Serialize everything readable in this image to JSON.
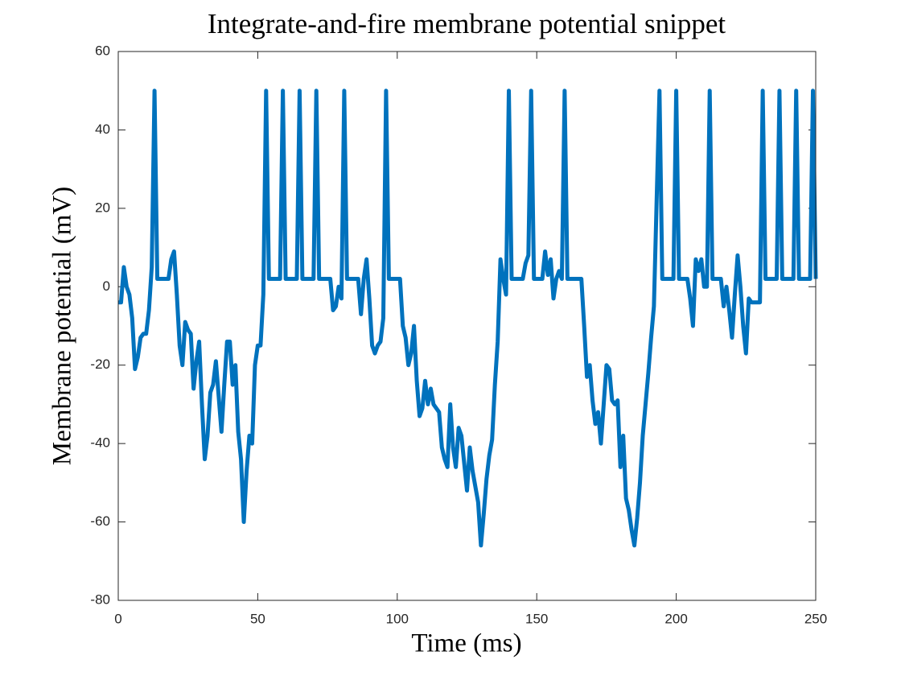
{
  "chart_data": {
    "type": "line",
    "title": "Integrate-and-fire membrane potential snippet",
    "x_label": "Time (ms)",
    "y_label": "Membrane potential (mV)",
    "xlim": [
      0,
      250
    ],
    "xticks": [
      0,
      50,
      100,
      150,
      200,
      250
    ],
    "ylim": [
      -80,
      60
    ],
    "yticks": [
      -80,
      -60,
      -40,
      -20,
      0,
      20,
      40,
      60
    ],
    "grid": false,
    "series": [
      {
        "color": "#0072bd",
        "x": [
          0,
          1,
          2,
          3,
          4,
          5,
          6,
          7,
          8,
          9,
          10,
          11,
          12,
          13,
          14,
          18,
          19,
          20,
          21,
          22,
          23,
          24,
          25,
          26,
          27,
          28,
          29,
          30,
          31,
          32,
          33,
          34,
          35,
          36,
          37,
          38,
          39,
          40,
          41,
          42,
          43,
          44,
          45,
          46,
          47,
          48,
          49,
          50,
          51,
          52,
          53,
          54,
          58,
          59,
          60,
          64,
          65,
          66,
          70,
          71,
          72,
          76,
          77,
          78,
          79,
          80,
          81,
          82,
          86,
          87,
          88,
          89,
          90,
          91,
          92,
          93,
          94,
          95,
          96,
          97,
          101,
          102,
          103,
          104,
          105,
          106,
          107,
          108,
          109,
          110,
          111,
          112,
          113,
          114,
          115,
          116,
          117,
          118,
          119,
          120,
          121,
          122,
          123,
          124,
          125,
          126,
          127,
          128,
          129,
          130,
          131,
          132,
          133,
          134,
          135,
          136,
          137,
          138,
          139,
          140,
          141,
          145,
          146,
          147,
          148,
          149,
          152,
          153,
          154,
          155,
          156,
          157,
          158,
          159,
          160,
          161,
          166,
          167,
          168,
          169,
          170,
          171,
          172,
          173,
          174,
          175,
          176,
          177,
          178,
          179,
          180,
          181,
          182,
          183,
          184,
          185,
          186,
          187,
          188,
          189,
          190,
          191,
          192,
          194,
          195,
          199,
          200,
          201,
          204,
          205,
          206,
          207,
          208,
          209,
          210,
          211,
          212,
          213,
          216,
          217,
          218,
          219,
          220,
          221,
          222,
          223,
          224,
          225,
          226,
          227,
          230,
          231,
          232,
          236,
          237,
          238,
          242,
          243,
          244,
          248,
          249,
          250
        ],
        "values": [
          -4,
          -4,
          5,
          0,
          -2,
          -8,
          -21,
          -18,
          -13,
          -12,
          -12,
          -6,
          5,
          50,
          2,
          2,
          7,
          9,
          -2,
          -15,
          -20,
          -9,
          -11,
          -12,
          -26,
          -19,
          -14,
          -30,
          -44,
          -38,
          -27,
          -25,
          -19,
          -28,
          -37,
          -25,
          -14,
          -14,
          -25,
          -20,
          -37,
          -44,
          -60,
          -47,
          -38,
          -40,
          -20,
          -15,
          -15,
          -2,
          50,
          2,
          2,
          50,
          2,
          2,
          50,
          2,
          2,
          50,
          2,
          2,
          -6,
          -5,
          0,
          -3,
          50,
          2,
          2,
          -7,
          2,
          7,
          -3,
          -15,
          -17,
          -15,
          -14,
          -8,
          50,
          2,
          2,
          -10,
          -13,
          -20,
          -17,
          -10,
          -24,
          -33,
          -31,
          -24,
          -30,
          -26,
          -30,
          -31,
          -32,
          -41,
          -44,
          -46,
          -30,
          -41,
          -46,
          -36,
          -38,
          -45,
          -52,
          -41,
          -47,
          -51,
          -55,
          -66,
          -58,
          -49,
          -43,
          -39,
          -25,
          -14,
          7,
          2,
          -2,
          50,
          2,
          2,
          6,
          8,
          50,
          2,
          2,
          9,
          3,
          7,
          -3,
          2,
          4,
          2,
          50,
          2,
          2,
          -10,
          -23,
          -20,
          -29,
          -35,
          -32,
          -40,
          -30,
          -20,
          -21,
          -29,
          -30,
          -29,
          -46,
          -38,
          -54,
          -57,
          -62,
          -66,
          -59,
          -50,
          -38,
          -30,
          -22,
          -13,
          -5,
          50,
          2,
          2,
          50,
          2,
          2,
          -3,
          -10,
          7,
          4,
          7,
          0,
          0,
          50,
          2,
          2,
          -5,
          0,
          -6,
          -13,
          -2,
          8,
          0,
          -10,
          -17,
          -3,
          -4,
          -4,
          50,
          2,
          2,
          50,
          2,
          2,
          50,
          2,
          2,
          50,
          2
        ]
      }
    ]
  }
}
